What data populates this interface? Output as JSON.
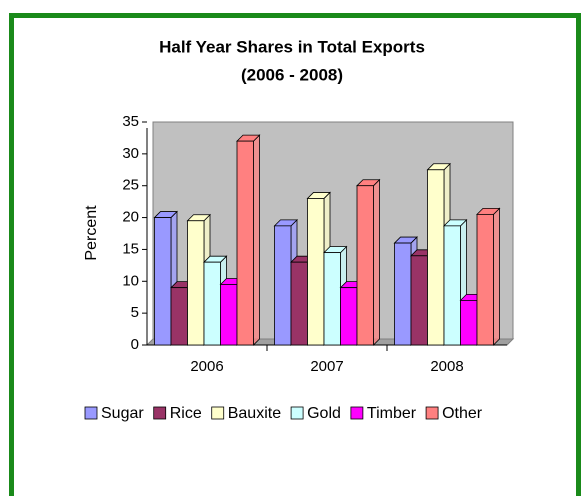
{
  "chart_data": {
    "type": "bar3d",
    "title": "Half Year Shares in Total Exports",
    "subtitle": "(2006 - 2008)",
    "y_label": "Percent",
    "categories": [
      "2006",
      "2007",
      "2008"
    ],
    "series": [
      {
        "name": "Sugar",
        "color": "#9999ff",
        "values": [
          20,
          18.7,
          16
        ]
      },
      {
        "name": "Rice",
        "color": "#993366",
        "values": [
          9,
          13,
          14
        ]
      },
      {
        "name": "Bauxite",
        "color": "#ffffcc",
        "values": [
          19.5,
          23,
          27.5
        ]
      },
      {
        "name": "Gold",
        "color": "#ccffff",
        "values": [
          13,
          14.5,
          18.7
        ]
      },
      {
        "name": "Timber",
        "color": "#ff00ff",
        "values": [
          9.5,
          9,
          7
        ]
      },
      {
        "name": "Other",
        "color": "#ff8080",
        "values": [
          32,
          25,
          20.5
        ]
      }
    ],
    "ylim": [
      0,
      35
    ],
    "yticks": [
      0,
      5,
      10,
      15,
      20,
      25,
      30,
      35
    ],
    "legend": "bottom"
  }
}
